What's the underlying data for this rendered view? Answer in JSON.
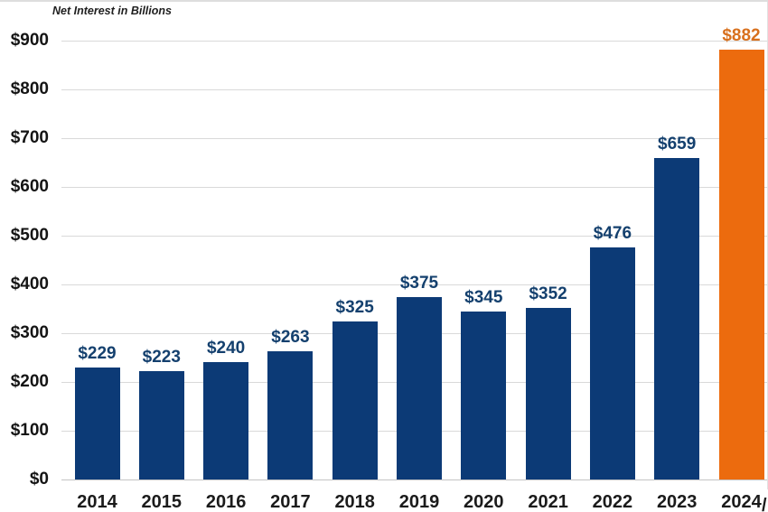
{
  "colors": {
    "bar_primary": "#0c3a76",
    "bar_highlight": "#ec6b0e",
    "value_label_primary": "#14406e",
    "value_label_highlight": "#d8701d",
    "axis_text": "#141414",
    "gridline": "#d9d9d9",
    "axis_line": "#c4c4c4"
  },
  "chart_data": {
    "type": "bar",
    "title": "Net Interest in Billions",
    "categories": [
      "2014",
      "2015",
      "2016",
      "2017",
      "2018",
      "2019",
      "2020",
      "2021",
      "2022",
      "2023",
      "2024"
    ],
    "values": [
      229,
      223,
      240,
      263,
      325,
      375,
      345,
      352,
      476,
      659,
      882
    ],
    "bar_labels": [
      "$229",
      "$223",
      "$240",
      "$263",
      "$325",
      "$375",
      "$345",
      "$352",
      "$476",
      "$659",
      "$882"
    ],
    "highlight_index": 10,
    "y_ticks": [
      {
        "value": 0,
        "label": "$0"
      },
      {
        "value": 100,
        "label": "$100"
      },
      {
        "value": 200,
        "label": "$200"
      },
      {
        "value": 300,
        "label": "$300"
      },
      {
        "value": 400,
        "label": "$400"
      },
      {
        "value": 500,
        "label": "$500"
      },
      {
        "value": 600,
        "label": "$600"
      },
      {
        "value": 700,
        "label": "$700"
      },
      {
        "value": 800,
        "label": "$800"
      },
      {
        "value": 900,
        "label": "$900"
      }
    ],
    "ylim": [
      0,
      900
    ],
    "grid": true,
    "legend_position": "none",
    "xlabel": "",
    "ylabel": "",
    "x_axis_partial_suffix": "/"
  }
}
